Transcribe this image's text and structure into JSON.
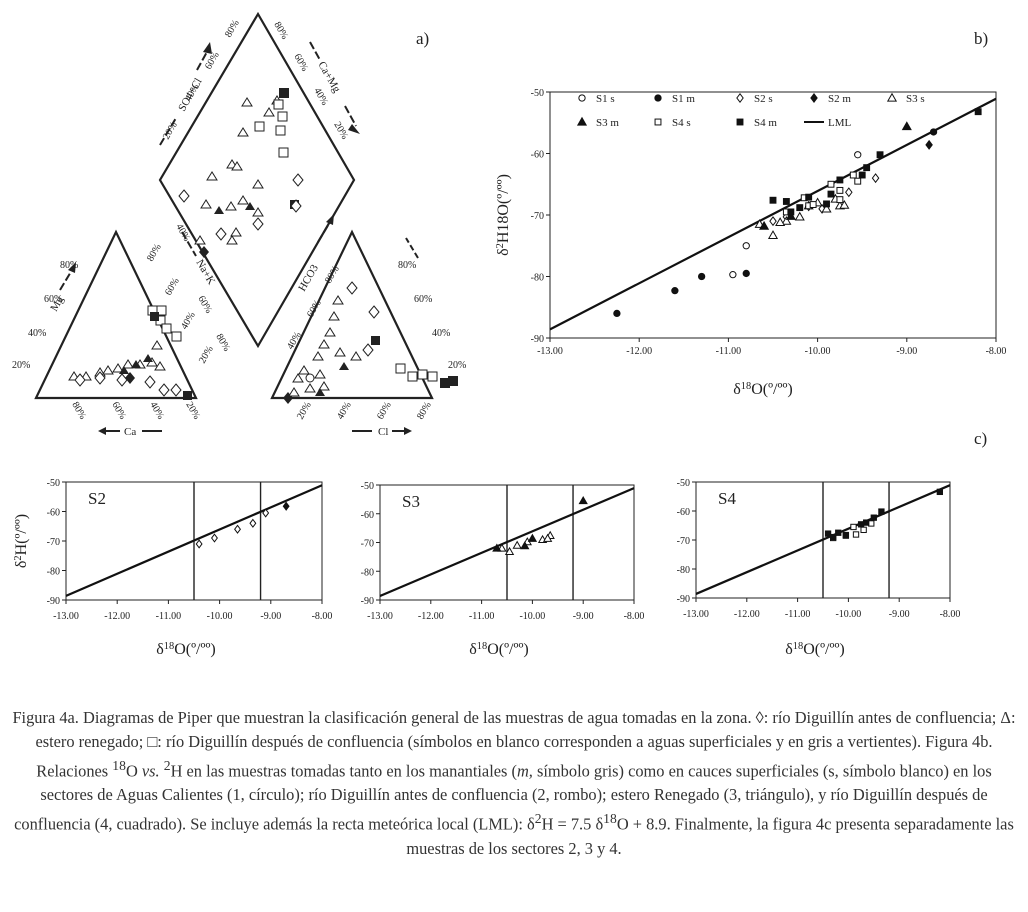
{
  "panels": {
    "a": "a)",
    "b": "b)",
    "c": "c)"
  },
  "piper": {
    "diamond_left_label": "SO4+Cl",
    "diamond_right_label": "Ca+Mg",
    "diamond_left_ticks": [
      "20%",
      "40%",
      "60%",
      "80%"
    ],
    "diamond_right_ticks": [
      "80%",
      "60%",
      "40%",
      "20%"
    ],
    "nak_label": "Na+K",
    "nak_ticks": [
      "40%",
      "60%",
      "80%"
    ],
    "hco3_label": "HCO3",
    "hco3_ticks": [
      "40%",
      "60%",
      "80%"
    ],
    "mg_label": "Mg",
    "mg_ticks": [
      "80%",
      "60%",
      "40%",
      "20%"
    ],
    "ca_label": "Ca",
    "ca_ticks": [
      "80%",
      "60%",
      "40%",
      "20%"
    ],
    "cl_label": "Cl",
    "cl_ticks": [
      "20%",
      "40%",
      "60%",
      "80%"
    ],
    "cation_right_ticks": [
      "80%",
      "60%",
      "40%",
      "20%"
    ],
    "anion_right_ticks": [
      "80%",
      "60%",
      "40%",
      "20%"
    ]
  },
  "chart_data": [
    {
      "type": "scatter",
      "title": "",
      "xlabel": "δ18O(º/ºº)",
      "ylabel": "δ2H18O(º/ºº)",
      "xlim": [
        -13,
        -8
      ],
      "ylim": [
        -90,
        -50
      ],
      "x_ticks": [
        "-13.00",
        "-12.00",
        "-11.00",
        "-10.00",
        "-9.00",
        "-8.00"
      ],
      "y_ticks": [
        "-50",
        "-60",
        "-70",
        "-80",
        "-90"
      ],
      "legend": [
        {
          "name": "S1 s",
          "marker": "circle-open"
        },
        {
          "name": "S1 m",
          "marker": "circle-filled"
        },
        {
          "name": "S2 s",
          "marker": "diamond-open"
        },
        {
          "name": "S2 m",
          "marker": "diamond-filled"
        },
        {
          "name": "S3 s",
          "marker": "triangle-open"
        },
        {
          "name": "S3 m",
          "marker": "triangle-filled"
        },
        {
          "name": "S4 s",
          "marker": "square-open"
        },
        {
          "name": "S4 m",
          "marker": "square-filled"
        },
        {
          "name": "LML",
          "marker": "line"
        }
      ],
      "lml": {
        "slope": 7.5,
        "intercept": 8.9
      },
      "series": [
        {
          "name": "S1 s",
          "points": [
            [
              -10.8,
              -75
            ],
            [
              -10.95,
              -79.7
            ],
            [
              -9.55,
              -60.2
            ]
          ]
        },
        {
          "name": "S1 m",
          "points": [
            [
              -12.25,
              -86
            ],
            [
              -11.6,
              -82.3
            ],
            [
              -11.3,
              -80
            ],
            [
              -10.8,
              -79.5
            ],
            [
              -8.7,
              -56.5
            ]
          ]
        },
        {
          "name": "S2 s",
          "points": [
            [
              -9.35,
              -64
            ],
            [
              -9.65,
              -66.3
            ],
            [
              -9.95,
              -69
            ],
            [
              -10.1,
              -68.6
            ],
            [
              -10.35,
              -70.3
            ],
            [
              -10.5,
              -71
            ]
          ]
        },
        {
          "name": "S2 m",
          "points": [
            [
              -8.75,
              -58.6
            ]
          ]
        },
        {
          "name": "S3 s",
          "points": [
            [
              -10.65,
              -71.5
            ],
            [
              -10.5,
              -73.3
            ],
            [
              -10.35,
              -71
            ],
            [
              -10.2,
              -70.3
            ],
            [
              -9.9,
              -69
            ],
            [
              -9.75,
              -68.5
            ],
            [
              -9.8,
              -67.4
            ],
            [
              -10.0,
              -68
            ],
            [
              -9.7,
              -68.4
            ],
            [
              -10.42,
              -71.2
            ]
          ]
        },
        {
          "name": "S3 m",
          "points": [
            [
              -10.6,
              -71.8
            ],
            [
              -10.3,
              -70.2
            ],
            [
              -10.1,
              -68.5
            ],
            [
              -9.0,
              -55.6
            ]
          ]
        },
        {
          "name": "S4 s",
          "points": [
            [
              -9.55,
              -64.5
            ],
            [
              -9.75,
              -66
            ],
            [
              -9.85,
              -65
            ],
            [
              -10.1,
              -68.5
            ],
            [
              -9.6,
              -63.5
            ],
            [
              -10.05,
              -68.3
            ],
            [
              -9.75,
              -67.5
            ],
            [
              -10.35,
              -69.5
            ],
            [
              -10.15,
              -67.2
            ]
          ]
        },
        {
          "name": "S4 m",
          "points": [
            [
              -8.2,
              -53.2
            ],
            [
              -9.3,
              -60.2
            ],
            [
              -9.5,
              -63.5
            ],
            [
              -9.75,
              -64.3
            ],
            [
              -10.5,
              -67.6
            ],
            [
              -10.35,
              -67.8
            ],
            [
              -10.1,
              -67.1
            ],
            [
              -9.9,
              -68.2
            ],
            [
              -10.2,
              -68.8
            ],
            [
              -10.3,
              -69.5
            ],
            [
              -9.45,
              -62.3
            ],
            [
              -9.85,
              -66.6
            ]
          ]
        }
      ]
    },
    {
      "type": "scatter",
      "title": "S2",
      "xlabel": "δ18O(º/ºº)",
      "ylabel": "δ2H(º/ºº)",
      "xlim": [
        -13,
        -8
      ],
      "ylim": [
        -90,
        -50
      ],
      "x_ticks": [
        "-13.00",
        "-12.00",
        "-11.00",
        "-10.00",
        "-9.00",
        "-8.00"
      ],
      "y_ticks": [
        "-50",
        "-60",
        "-70",
        "-80",
        "-90"
      ],
      "vlines": [
        -10.5,
        -9.2
      ],
      "lml": {
        "slope": 7.5,
        "intercept": 8.9
      },
      "series": [
        {
          "name": "S2 s",
          "marker": "diamond-open",
          "points": [
            [
              -10.4,
              -71
            ],
            [
              -10.1,
              -69
            ],
            [
              -9.65,
              -66
            ],
            [
              -9.35,
              -64
            ],
            [
              -9.1,
              -60.5
            ]
          ]
        },
        {
          "name": "S2 m",
          "marker": "diamond-filled",
          "points": [
            [
              -8.7,
              -58.2
            ]
          ]
        }
      ]
    },
    {
      "type": "scatter",
      "title": "S3",
      "xlabel": "δ18O(º/ºº)",
      "ylabel": "",
      "xlim": [
        -13,
        -8
      ],
      "ylim": [
        -90,
        -50
      ],
      "x_ticks": [
        "-13.00",
        "-12.00",
        "-11.00",
        "-10.00",
        "-9.00",
        "-8.00"
      ],
      "y_ticks": [
        "-50",
        "-60",
        "-70",
        "-80",
        "-90"
      ],
      "vlines": [
        -10.5,
        -9.2
      ],
      "lml": {
        "slope": 7.5,
        "intercept": 8.9
      },
      "series": [
        {
          "name": "S3 s",
          "marker": "triangle-open",
          "points": [
            [
              -10.6,
              -72
            ],
            [
              -10.45,
              -73.2
            ],
            [
              -10.3,
              -71
            ],
            [
              -10.1,
              -69.8
            ],
            [
              -9.8,
              -69
            ],
            [
              -9.65,
              -67.6
            ],
            [
              -9.7,
              -68.6
            ]
          ]
        },
        {
          "name": "S3 m",
          "marker": "triangle-filled",
          "points": [
            [
              -10.7,
              -72
            ],
            [
              -10.15,
              -71.2
            ],
            [
              -10.0,
              -68.6
            ],
            [
              -9.0,
              -55.5
            ]
          ]
        }
      ]
    },
    {
      "type": "scatter",
      "title": "S4",
      "xlabel": "δ18O(º/ºº)",
      "ylabel": "",
      "xlim": [
        -13,
        -8
      ],
      "ylim": [
        -90,
        -50
      ],
      "x_ticks": [
        "-13.00",
        "-12.00",
        "-11.00",
        "-10.00",
        "-9.00",
        "-8.00"
      ],
      "y_ticks": [
        "-50",
        "-60",
        "-70",
        "-80",
        "-90"
      ],
      "vlines": [
        -10.5,
        -9.2
      ],
      "lml": {
        "slope": 7.5,
        "intercept": 8.9
      },
      "series": [
        {
          "name": "S4 s",
          "marker": "square-open",
          "points": [
            [
              -9.9,
              -65.5
            ],
            [
              -9.7,
              -66.5
            ],
            [
              -10.05,
              -68.5
            ],
            [
              -9.55,
              -64.3
            ],
            [
              -9.85,
              -68.1
            ],
            [
              -10.3,
              -69.3
            ]
          ]
        },
        {
          "name": "S4 m",
          "marker": "square-filled",
          "points": [
            [
              -8.2,
              -53.4
            ],
            [
              -9.35,
              -60.2
            ],
            [
              -9.5,
              -62.3
            ],
            [
              -9.65,
              -64
            ],
            [
              -10.4,
              -67.8
            ],
            [
              -10.2,
              -67.5
            ],
            [
              -10.05,
              -68.3
            ],
            [
              -10.3,
              -69
            ],
            [
              -9.75,
              -64.6
            ]
          ]
        }
      ]
    }
  ],
  "caption": {
    "p1": "Figura 4a. Diagramas de Piper que muestran la clasificación general de las muestras de agua tomadas en la zona. ◊: río Diguillín antes de confluencia; Δ: estero renegado; □: río Diguillín después de confluencia (símbolos en blanco corresponden a aguas superficiales y en gris a vertientes). Figura 4b. Relaciones ",
    "sup18": "18",
    "p2": "O ",
    "vs": "vs.",
    "p3": " ",
    "sup2": "2",
    "p4": "H en las muestras tomadas tanto en los manantiales (",
    "m": "m,",
    "p5": " símbolo gris) como en cauces superficiales (s, símbolo blanco) en los sectores de Aguas Calientes (1, círculo); río Diguillín antes de confluencia (2, rombo); estero Renegado (3, triángulo), y río Diguillín después de confluencia (4, cuadrado). Se incluye además la recta meteórica local (LML): δ",
    "sup2b": "2",
    "p6": "H = 7.5 δ",
    "sup18b": "18",
    "p7": "O + 8.9. Finalmente, la figura 4c presenta separadamente las muestras de los sectores 2, 3 y 4."
  }
}
